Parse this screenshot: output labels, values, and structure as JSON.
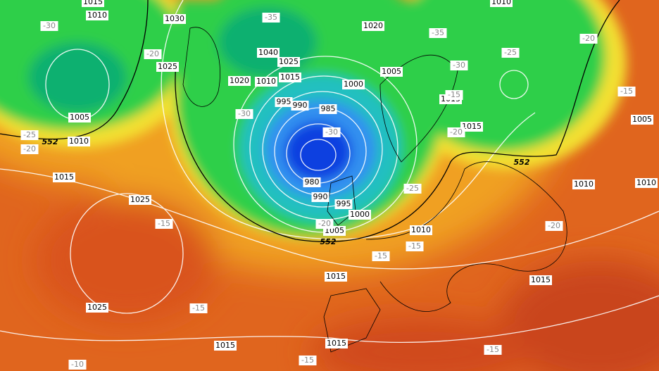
{
  "isobar_labels": [
    "1015",
    "1010",
    "1030",
    "1020",
    "1010",
    "1040",
    "1025",
    "1025",
    "1005",
    "1020",
    "1010",
    "1015",
    "1000",
    "985",
    "990",
    "995",
    "1015",
    "1005",
    "1010",
    "1015",
    "1015",
    "1010",
    "1005",
    "1010",
    "980",
    "990",
    "995",
    "1000",
    "1005",
    "1025",
    "1010",
    "1015",
    "1015",
    "1025",
    "1015",
    "1015"
  ],
  "temperature_labels": [
    "-30",
    "-35",
    "-35",
    "-20",
    "-25",
    "-30",
    "-15",
    "-30",
    "-30",
    "-25",
    "-20",
    "-20",
    "-20",
    "-15",
    "-25",
    "-15",
    "-20",
    "-15",
    "-15",
    "-20",
    "-15",
    "-15",
    "-10",
    "-15"
  ],
  "height_labels": [
    "552",
    "552",
    "552"
  ]
}
